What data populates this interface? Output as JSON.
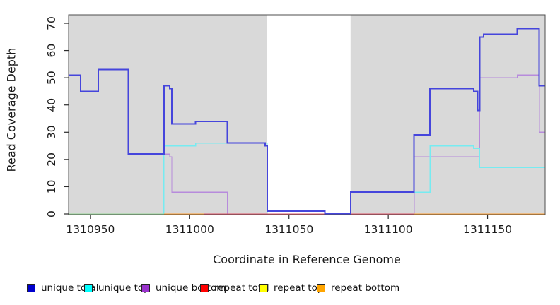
{
  "chart_data": {
    "type": "line",
    "subtype": "step-after",
    "title": "",
    "xlabel": "Coordinate in Reference Genome",
    "ylabel": "Read Coverage Depth",
    "xlim": [
      1310939,
      1311179
    ],
    "ylim": [
      0,
      73
    ],
    "x_ticks": [
      1310950,
      1311000,
      1311050,
      1311100,
      1311150
    ],
    "y_ticks": [
      0,
      10,
      20,
      30,
      40,
      50,
      60,
      70
    ],
    "grid": "off",
    "legend_position": "bottom",
    "plot_bg_color": "#D9D9D9",
    "white_band": {
      "from": 1311039,
      "to": 1311081
    },
    "series": [
      {
        "name": "unique bottom",
        "line_color": "#B78BDC",
        "width": 1.4,
        "steps": [
          [
            1310939,
            51
          ],
          [
            1310945,
            45
          ],
          [
            1310954,
            53
          ],
          [
            1310969,
            22
          ],
          [
            1310990,
            21
          ],
          [
            1310991,
            8
          ],
          [
            1311019,
            0
          ],
          [
            1311113,
            21
          ],
          [
            1311146,
            50
          ],
          [
            1311165,
            51
          ],
          [
            1311176,
            30
          ],
          [
            1311179,
            30
          ]
        ]
      },
      {
        "name": "unique top",
        "line_color": "#76EBF1",
        "width": 1.4,
        "steps": [
          [
            1310939,
            0
          ],
          [
            1310987,
            25
          ],
          [
            1311003,
            26
          ],
          [
            1311039,
            0
          ],
          [
            1311081,
            8
          ],
          [
            1311121,
            25
          ],
          [
            1311143,
            24
          ],
          [
            1311146,
            17
          ],
          [
            1311179,
            17
          ]
        ]
      },
      {
        "name": "repeat top",
        "line_color": "#FFFF00",
        "width": 1.3,
        "steps": [
          [
            1310939,
            0
          ],
          [
            1311179,
            0
          ]
        ]
      },
      {
        "name": "repeat bottom",
        "line_color": "#FF9D2E",
        "width": 1.3,
        "steps": [
          [
            1310939,
            0
          ],
          [
            1311179,
            0
          ]
        ]
      },
      {
        "name": "repeat total",
        "line_color": "#DE5468",
        "width": 1.3,
        "steps": [
          [
            1310939,
            0
          ],
          [
            1311179,
            0
          ]
        ]
      },
      {
        "name": "unique total",
        "line_color": "#4545DC",
        "width": 2,
        "steps": [
          [
            1310939,
            51
          ],
          [
            1310945,
            45
          ],
          [
            1310954,
            53
          ],
          [
            1310969,
            22
          ],
          [
            1310987,
            47
          ],
          [
            1310990,
            46
          ],
          [
            1310991,
            33
          ],
          [
            1311003,
            34
          ],
          [
            1311019,
            26
          ],
          [
            1311038,
            25
          ],
          [
            1311039,
            1
          ],
          [
            1311068,
            0
          ],
          [
            1311081,
            8
          ],
          [
            1311113,
            29
          ],
          [
            1311121,
            46
          ],
          [
            1311143,
            45
          ],
          [
            1311145,
            38
          ],
          [
            1311146,
            65
          ],
          [
            1311148,
            66
          ],
          [
            1311165,
            68
          ],
          [
            1311176,
            47
          ],
          [
            1311179,
            47
          ]
        ]
      }
    ],
    "baseline_overlay_segments": [
      {
        "name": "cyan-yellow-overlap",
        "color": "#97D897",
        "from": 1310939,
        "to": 1310987,
        "value": 0
      },
      {
        "name": "repeat-bottom-visible-left",
        "color": "#FF9D2E",
        "from": 1310987,
        "to": 1311007,
        "value": 0
      },
      {
        "name": "repeat-bottom-visible-right",
        "color": "#FF9D2E",
        "from": 1311113,
        "to": 1311179,
        "value": 0
      }
    ],
    "legend": [
      {
        "label": "unique total",
        "color": "#0000CD"
      },
      {
        "label": "unique top",
        "color": "#00FFFF"
      },
      {
        "label": "unique bottom",
        "color": "#9932CC"
      },
      {
        "label": "repeat total",
        "color": "#FF0000"
      },
      {
        "label": "repeat top",
        "color": "#FFFF00"
      },
      {
        "label": "repeat bottom",
        "color": "#FFA500"
      }
    ]
  }
}
